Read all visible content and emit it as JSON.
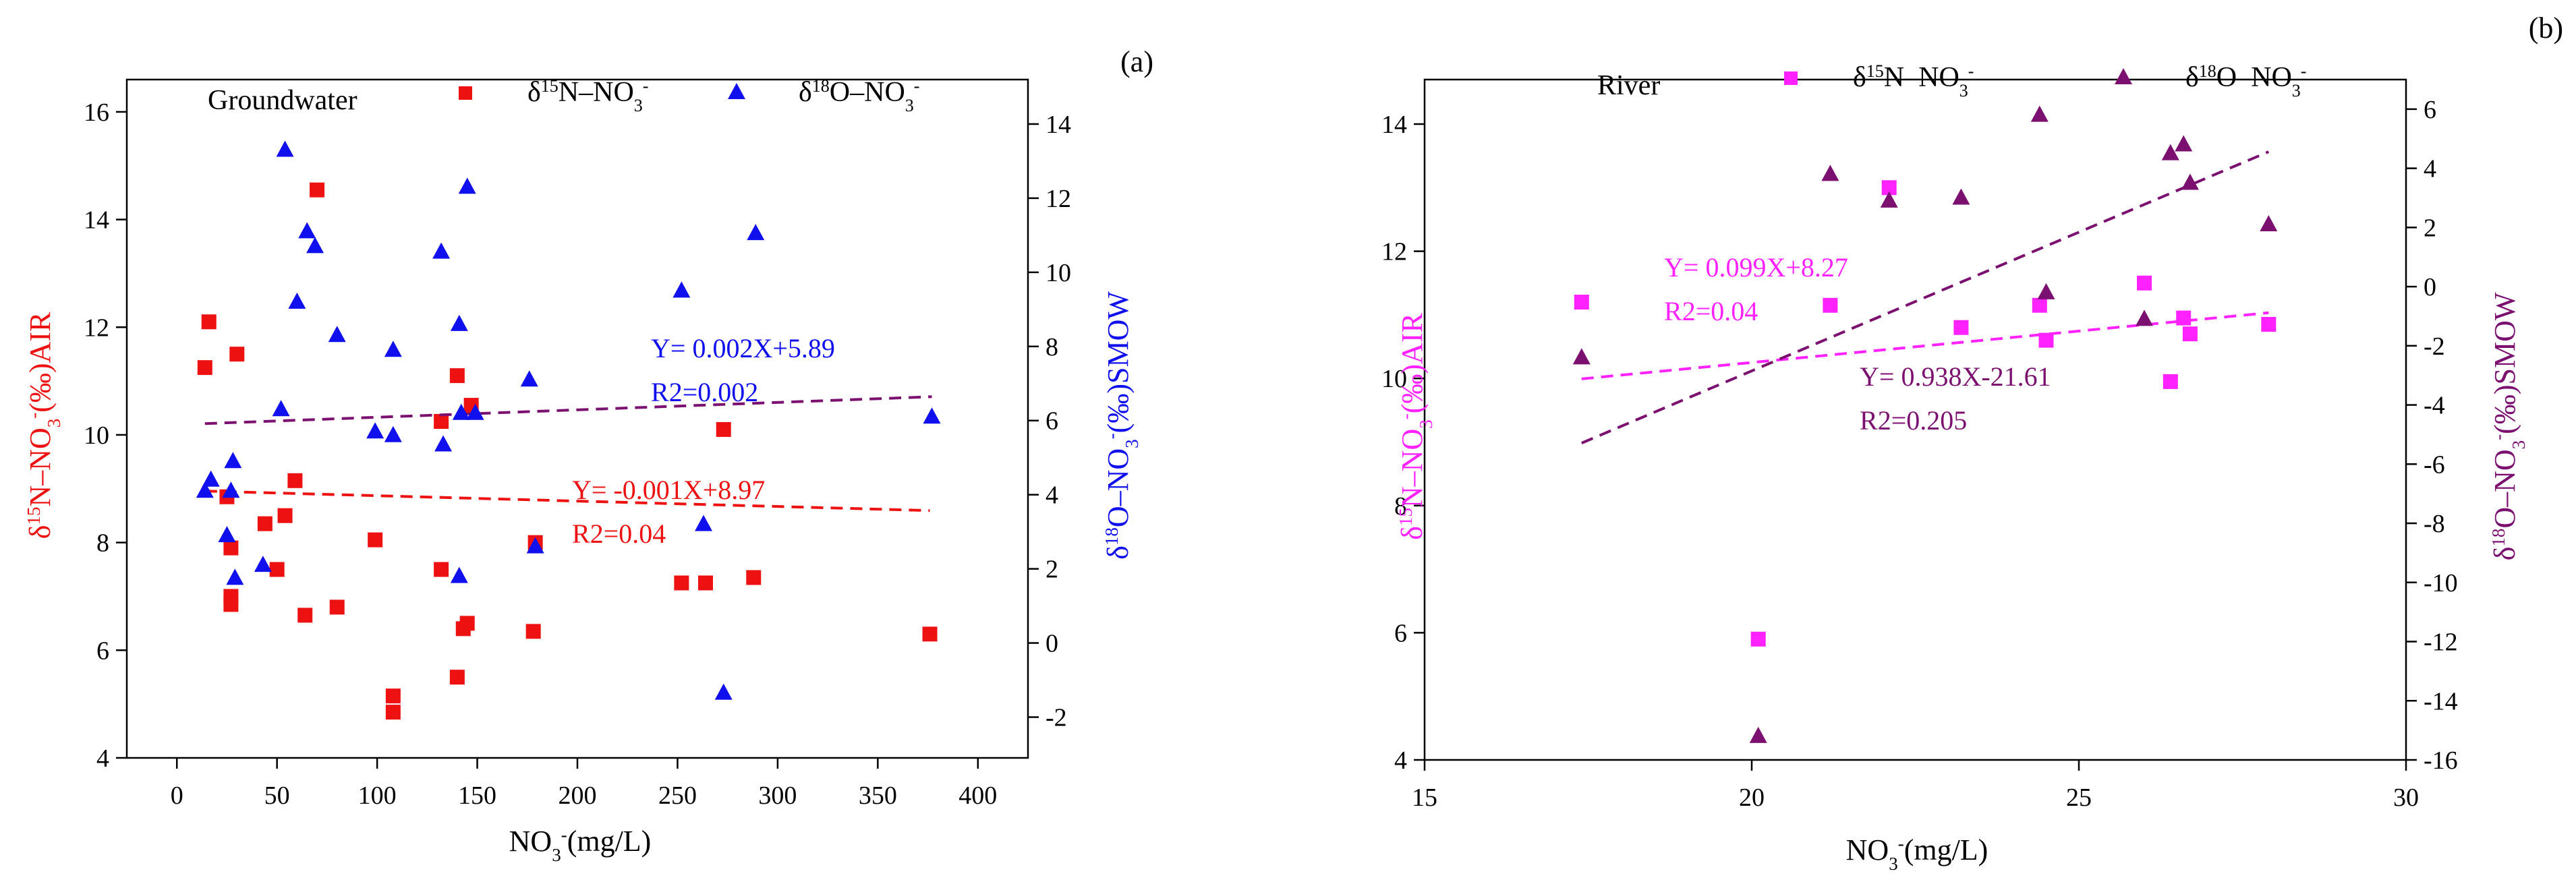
{
  "chart_data": [
    {
      "type": "scatter",
      "panel_label": "(a)",
      "sample_label": "Groundwater",
      "xlabel": {
        "base": "NO",
        "sub": "3",
        "sup": "-",
        "rest": "(mg/L)"
      },
      "ylabel_left": {
        "p1": "δ",
        "sup1": "15",
        "p2": "N–NO",
        "sub": "3",
        "sup2": "-",
        "p3": "(‰)AIR"
      },
      "ylabel_right": {
        "p1": "δ",
        "sup1": "18",
        "p2": "O–NO",
        "sub": "3",
        "sup2": "-",
        "p3": "(‰)SMOW"
      },
      "xlim": [
        -25,
        425
      ],
      "xticks": [
        0,
        50,
        100,
        150,
        200,
        250,
        300,
        350,
        400
      ],
      "ylim_left": [
        4,
        16.6
      ],
      "yticks_left": [
        4,
        6,
        8,
        10,
        12,
        14,
        16
      ],
      "ylim_right": [
        -3.1,
        15.2
      ],
      "yticks_right": [
        -2,
        0,
        2,
        4,
        6,
        8,
        10,
        12,
        14
      ],
      "grid": false,
      "legend_position": "top",
      "series": [
        {
          "name": {
            "p1": "δ",
            "sup1": "15",
            "p2": "N–NO",
            "sub": "3",
            "sup2": "-"
          },
          "axis": "left",
          "marker": "square",
          "color": "#ee1111",
          "points": [
            [
              14,
              11.25
            ],
            [
              16,
              12.1
            ],
            [
              25,
              8.85
            ],
            [
              27,
              7.9
            ],
            [
              27,
              7.0
            ],
            [
              27,
              6.85
            ],
            [
              30,
              11.5
            ],
            [
              44,
              8.35
            ],
            [
              50,
              7.5
            ],
            [
              54,
              8.5
            ],
            [
              59,
              9.15
            ],
            [
              64,
              6.65
            ],
            [
              70,
              14.55
            ],
            [
              99,
              8.05
            ],
            [
              80,
              6.8
            ],
            [
              108,
              5.15
            ],
            [
              108,
              4.85
            ],
            [
              132,
              7.5
            ],
            [
              132,
              10.25
            ],
            [
              140,
              11.1
            ],
            [
              143,
              6.4
            ],
            [
              140,
              5.5
            ],
            [
              145,
              6.5
            ],
            [
              147,
              10.55
            ],
            [
              178,
              6.35
            ],
            [
              179,
              8.0
            ],
            [
              252,
              7.25
            ],
            [
              264,
              7.25
            ],
            [
              273,
              10.1
            ],
            [
              288,
              7.35
            ],
            [
              376,
              6.3
            ]
          ],
          "fit": {
            "slope": -0.001,
            "intercept": 8.97,
            "x_range": [
              14,
              376
            ],
            "equation": "Y= -0.001X+8.97",
            "r2_label": "R",
            "r2_sup": "2",
            "r2_value": "=0.04"
          }
        },
        {
          "name": {
            "p1": "δ",
            "sup1": "18",
            "p2": "O–NO",
            "sub": "3",
            "sup2": "-"
          },
          "axis": "right",
          "marker": "triangle",
          "color": "#1010ee",
          "points": [
            [
              14,
              4.1
            ],
            [
              17,
              4.4
            ],
            [
              25,
              2.9
            ],
            [
              27,
              4.1
            ],
            [
              28,
              4.9
            ],
            [
              29,
              1.75
            ],
            [
              43,
              2.1
            ],
            [
              52,
              6.3
            ],
            [
              54,
              13.3
            ],
            [
              60,
              9.2
            ],
            [
              65,
              11.1
            ],
            [
              69,
              10.7
            ],
            [
              80,
              8.3
            ],
            [
              99,
              5.7
            ],
            [
              108,
              5.6
            ],
            [
              108,
              7.9
            ],
            [
              132,
              10.55
            ],
            [
              133,
              5.35
            ],
            [
              141,
              8.6
            ],
            [
              142,
              6.2
            ],
            [
              141,
              1.8
            ],
            [
              145,
              12.3
            ],
            [
              149,
              6.2
            ],
            [
              176,
              7.1
            ],
            [
              179,
              2.6
            ],
            [
              252,
              9.5
            ],
            [
              263,
              3.2
            ],
            [
              273,
              -1.35
            ],
            [
              289,
              11.05
            ],
            [
              377,
              6.1
            ]
          ],
          "fit": {
            "slope": 0.002,
            "intercept": 5.89,
            "x_range": [
              14,
              377
            ],
            "equation": "Y= 0.002X+5.89",
            "r2_label": "R",
            "r2_sup": "2",
            "r2_value": "=0.002"
          }
        }
      ]
    },
    {
      "type": "scatter",
      "panel_label": "(b)",
      "sample_label": "River",
      "xlabel": {
        "base": "NO",
        "sub": "3",
        "sup": "-",
        "rest": "(mg/L)"
      },
      "ylabel_left": {
        "p1": "δ",
        "sup1": "15",
        "p2": "N–NO",
        "sub": "3",
        "sup2": "-",
        "p3": "(‰)AIR"
      },
      "ylabel_right": {
        "p1": "δ",
        "sup1": "18",
        "p2": "O–NO",
        "sub": "3",
        "sup2": "-",
        "p3": "(‰)SMOW"
      },
      "xlim": [
        15,
        30
      ],
      "xticks": [
        15,
        20,
        25,
        30
      ],
      "ylim_left": [
        4,
        14.7
      ],
      "yticks_left": [
        4,
        6,
        8,
        10,
        12,
        14
      ],
      "ylim_right": [
        -16,
        7
      ],
      "yticks_right": [
        -16,
        -14,
        -12,
        -10,
        -8,
        -6,
        -4,
        -2,
        0,
        2,
        4,
        6
      ],
      "grid": false,
      "legend_position": "top",
      "series": [
        {
          "name": {
            "p1": "δ",
            "sup1": "15",
            "p2": "N–NO",
            "sub": "3",
            "sup2": "-"
          },
          "axis": "left",
          "marker": "square",
          "color": "#ff22ff",
          "points": [
            [
              17.4,
              11.2
            ],
            [
              20.1,
              5.9
            ],
            [
              21.2,
              11.15
            ],
            [
              22.1,
              13.0
            ],
            [
              23.2,
              10.8
            ],
            [
              24.4,
              11.15
            ],
            [
              24.5,
              10.6
            ],
            [
              26.0,
              11.5
            ],
            [
              26.4,
              9.95
            ],
            [
              26.6,
              10.95
            ],
            [
              26.7,
              10.7
            ],
            [
              27.9,
              10.85
            ]
          ],
          "fit": {
            "slope": 0.099,
            "intercept": 8.27,
            "x_range": [
              17.4,
              27.9
            ],
            "equation": "Y= 0.099X+8.27",
            "r2_label": "R",
            "r2_sup": "2",
            "r2_value": "=0.04"
          }
        },
        {
          "name": {
            "p1": "δ",
            "sup1": "18",
            "p2": "O–NO",
            "sub": "3",
            "sup2": "-"
          },
          "axis": "right",
          "marker": "triangle",
          "color": "#7b1070",
          "points": [
            [
              17.4,
              -2.4
            ],
            [
              20.1,
              -15.2
            ],
            [
              21.2,
              3.8
            ],
            [
              22.1,
              2.9
            ],
            [
              23.2,
              3.0
            ],
            [
              24.4,
              5.8
            ],
            [
              24.5,
              -0.2
            ],
            [
              26.0,
              -1.1
            ],
            [
              26.4,
              4.5
            ],
            [
              26.6,
              4.8
            ],
            [
              26.7,
              3.5
            ],
            [
              27.9,
              2.1
            ]
          ],
          "fit": {
            "slope": 0.938,
            "intercept": -21.61,
            "x_range": [
              17.4,
              27.9
            ],
            "equation": "Y= 0.938X-21.61",
            "r2_label": "R",
            "r2_sup": "2",
            "r2_value": "=0.205"
          }
        }
      ]
    }
  ]
}
